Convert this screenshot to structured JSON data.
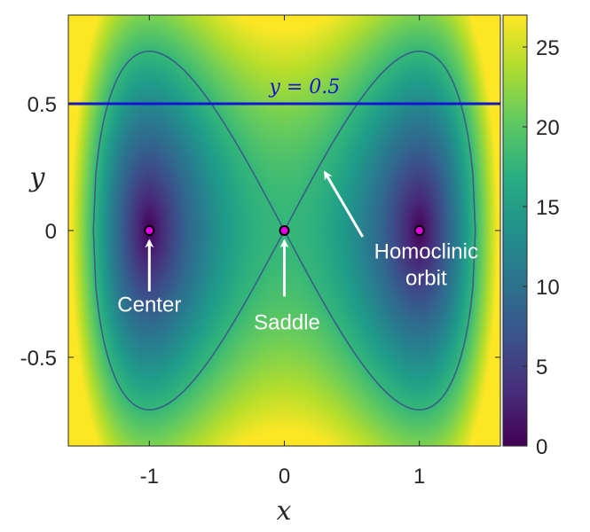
{
  "chart_data": {
    "type": "heatmap",
    "title": "",
    "xlabel": "x",
    "ylabel": "y",
    "xlim": [
      -1.6,
      1.6
    ],
    "ylim": [
      -0.85,
      0.85
    ],
    "xticks": [
      -1,
      0,
      1
    ],
    "xtick_labels": [
      "-1",
      "0",
      "1"
    ],
    "yticks": [
      -0.5,
      0,
      0.5
    ],
    "ytick_labels": [
      "-0.5",
      "0",
      "0.5"
    ],
    "colormap": "viridis",
    "clim": [
      0,
      27
    ],
    "colorbar_ticks": [
      0,
      5,
      10,
      15,
      20,
      25
    ],
    "colorbar_tick_labels": [
      "0",
      "5",
      "10",
      "15",
      "20",
      "25"
    ],
    "horizontal_line": {
      "y": 0.5,
      "label": "y = 0.5",
      "color": "#1414d2"
    },
    "critical_points": [
      {
        "x": -1,
        "y": 0,
        "label": "Center",
        "color": "#e600e6"
      },
      {
        "x": 0,
        "y": 0,
        "label": "Saddle",
        "color": "#e600e6"
      },
      {
        "x": 1,
        "y": 0,
        "label": "",
        "color": "#e600e6"
      }
    ],
    "annotations": [
      {
        "text": [
          "Center"
        ],
        "points_to": {
          "x": -1,
          "y": 0
        }
      },
      {
        "text": [
          "Saddle"
        ],
        "points_to": {
          "x": 0,
          "y": 0
        }
      },
      {
        "text": [
          "Homoclinic",
          "orbit"
        ],
        "points_to": {
          "x": 0.3,
          "y": 0.23
        }
      }
    ],
    "homoclinic_orbit_color": "#3b4f8a"
  }
}
